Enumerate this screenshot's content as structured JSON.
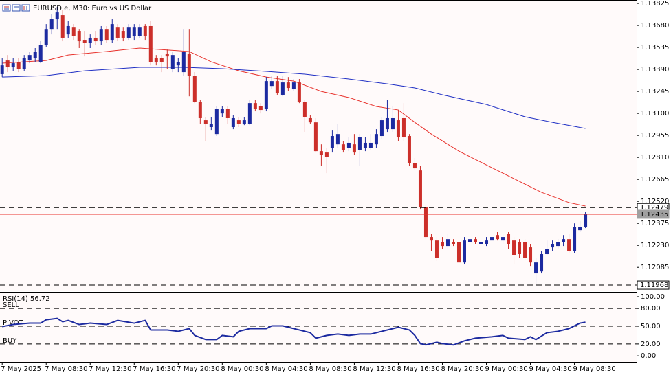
{
  "header": {
    "title": "EURUSD.e, M30:  Euro vs US Dollar"
  },
  "chart_data": [
    {
      "type": "candlestick",
      "up_color": "#1c2aa0",
      "down_color": "#cc2f2a",
      "xlim": [
        -0.4,
        115.3
      ],
      "ylim": [
        1.11932,
        1.13848
      ],
      "yticks": [
        1.13825,
        {
          "value": 1.1368,
          "label": "1.13680"
        },
        1.13535,
        {
          "value": 1.1339,
          "label": "1.13390"
        },
        1.13245,
        {
          "value": 1.131,
          "label": "1.13100"
        },
        1.12955,
        {
          "value": 1.1281,
          "label": "1.12810"
        },
        1.12665,
        {
          "value": 1.1252,
          "label": "1.12520"
        },
        1.12375,
        {
          "value": 1.1223,
          "label": "1.12230"
        },
        1.12085
      ],
      "open": [
        1.13359,
        1.13449,
        1.13404,
        1.1344,
        1.13395,
        1.13449,
        1.13463,
        1.1344,
        1.13553,
        1.13657,
        1.13721,
        1.13748,
        1.13621,
        1.13666,
        1.13644,
        1.13585,
        1.13567,
        1.13599,
        1.13576,
        1.13657,
        1.13585,
        1.13666,
        1.13644,
        1.13599,
        1.13612,
        1.13612,
        1.13676,
        1.13676,
        1.13463,
        1.13463,
        1.13494,
        1.13395,
        1.13417,
        1.13372,
        1.13494,
        1.13349,
        1.13177,
        1.13055,
        1.1301,
        1.12964,
        1.131,
        1.13132,
        1.1301,
        1.13055,
        1.13032,
        1.13032,
        1.13168,
        1.13146,
        1.13132,
        1.13281,
        1.13313,
        1.13223,
        1.13304,
        1.13259,
        1.13304,
        1.13177,
        1.13069,
        1.13041,
        1.12851,
        1.12842,
        1.12874,
        1.12896,
        1.12896,
        1.12874,
        1.12896,
        1.1286,
        1.12874,
        1.12874,
        1.12896,
        1.12951,
        1.12996,
        1.12996,
        1.13055,
        1.13069,
        1.12951,
        1.1277,
        1.12724,
        1.1248,
        1.12285,
        1.12262,
        1.12253,
        1.12226,
        1.12253,
        1.12253,
        1.12117,
        1.12253,
        1.12271,
        1.1224,
        1.1224,
        1.12262,
        1.12298,
        1.12262,
        1.12307,
        1.12262,
        1.12253,
        1.12253,
        1.12217,
        1.12045,
        1.12058,
        1.12172,
        1.12217,
        1.12226,
        1.12253,
        1.12271,
        1.12194,
        1.1233,
        1.12353
      ],
      "high": [
        1.13463,
        1.13485,
        1.13463,
        1.13463,
        1.13485,
        1.13508,
        1.13531,
        1.13576,
        1.13689,
        1.13757,
        1.13803,
        1.1378,
        1.13712,
        1.13689,
        1.13657,
        1.13644,
        1.13621,
        1.13644,
        1.13676,
        1.13676,
        1.13721,
        1.13689,
        1.13666,
        1.13689,
        1.13689,
        1.13689,
        1.13689,
        1.13712,
        1.13485,
        1.13485,
        1.13521,
        1.13508,
        1.13463,
        1.13657,
        1.13657,
        1.13372,
        1.13191,
        1.13078,
        1.13078,
        1.13146,
        1.13146,
        1.13146,
        1.13087,
        1.13078,
        1.13078,
        1.13191,
        1.13191,
        1.13168,
        1.1334,
        1.13349,
        1.13349,
        1.13349,
        1.1334,
        1.13327,
        1.13327,
        1.13191,
        1.13087,
        1.13069,
        1.12896,
        1.12874,
        1.12987,
        1.13032,
        1.12919,
        1.12942,
        1.12964,
        1.12964,
        1.12942,
        1.12964,
        1.12996,
        1.13078,
        1.13191,
        1.13146,
        1.13123,
        1.13168,
        1.12964,
        1.12806,
        1.12752,
        1.12498,
        1.12307,
        1.12285,
        1.12285,
        1.12307,
        1.12271,
        1.12271,
        1.12285,
        1.12298,
        1.12285,
        1.12262,
        1.12285,
        1.12307,
        1.12317,
        1.12307,
        1.12317,
        1.12285,
        1.12271,
        1.12271,
        1.1224,
        1.12149,
        1.12194,
        1.12262,
        1.12262,
        1.12271,
        1.12298,
        1.12307,
        1.12375,
        1.12389,
        1.12452
      ],
      "low": [
        1.1334,
        1.13372,
        1.13377,
        1.13372,
        1.13377,
        1.13431,
        1.1344,
        1.13431,
        1.1354,
        1.13621,
        1.13657,
        1.13576,
        1.13599,
        1.13585,
        1.13531,
        1.13476,
        1.13531,
        1.13553,
        1.13549,
        1.13567,
        1.13567,
        1.13576,
        1.13576,
        1.13585,
        1.13585,
        1.13599,
        1.13585,
        1.13417,
        1.13417,
        1.13372,
        1.13395,
        1.13372,
        1.13372,
        1.13349,
        1.13213,
        1.13168,
        1.13032,
        1.12919,
        1.12987,
        1.12951,
        1.13078,
        1.13032,
        1.12996,
        1.1301,
        1.13023,
        1.13023,
        1.13114,
        1.131,
        1.13114,
        1.13259,
        1.13223,
        1.13213,
        1.1325,
        1.1325,
        1.13168,
        1.12978,
        1.13032,
        1.12842,
        1.12752,
        1.12706,
        1.12842,
        1.12874,
        1.12842,
        1.12851,
        1.12828,
        1.12752,
        1.12851,
        1.1286,
        1.12874,
        1.12933,
        1.12978,
        1.12978,
        1.12919,
        1.12919,
        1.12752,
        1.12724,
        1.12466,
        1.12271,
        1.12194,
        1.12126,
        1.12208,
        1.12208,
        1.12226,
        1.12104,
        1.12104,
        1.1224,
        1.1224,
        1.12217,
        1.12226,
        1.12253,
        1.12262,
        1.1224,
        1.12208,
        1.12104,
        1.12149,
        1.12135,
        1.1209,
        1.11968,
        1.12045,
        1.12163,
        1.12194,
        1.12208,
        1.12226,
        1.12181,
        1.12181,
        1.12317,
        1.12344
      ],
      "close": [
        1.13417,
        1.13404,
        1.13431,
        1.13395,
        1.13463,
        1.13485,
        1.13508,
        1.13553,
        1.13657,
        1.13721,
        1.13766,
        1.13599,
        1.13676,
        1.13612,
        1.13576,
        1.13567,
        1.13599,
        1.13576,
        1.13657,
        1.13585,
        1.13689,
        1.13599,
        1.13599,
        1.13666,
        1.13666,
        1.13666,
        1.13612,
        1.1344,
        1.1344,
        1.1344,
        1.13476,
        1.13485,
        1.1344,
        1.13508,
        1.13349,
        1.13177,
        1.13069,
        1.13032,
        1.13032,
        1.13132,
        1.13132,
        1.13069,
        1.13069,
        1.13032,
        1.13055,
        1.13168,
        1.13132,
        1.13123,
        1.13313,
        1.13313,
        1.13236,
        1.13304,
        1.13268,
        1.13304,
        1.13177,
        1.13078,
        1.13041,
        1.12851,
        1.12828,
        1.12815,
        1.12951,
        1.12964,
        1.1286,
        1.12906,
        1.12842,
        1.12942,
        1.12906,
        1.12906,
        1.12964,
        1.13055,
        1.13069,
        1.13069,
        1.12942,
        1.12942,
        1.1277,
        1.12738,
        1.1248,
        1.12285,
        1.12262,
        1.12149,
        1.12226,
        1.12271,
        1.1224,
        1.12117,
        1.12262,
        1.12271,
        1.12253,
        1.12253,
        1.12262,
        1.12285,
        1.12271,
        1.12285,
        1.1224,
        1.12163,
        1.12172,
        1.12149,
        1.12117,
        1.12117,
        1.12172,
        1.12208,
        1.1224,
        1.12253,
        1.12271,
        1.12194,
        1.12353,
        1.12353,
        1.12435
      ],
      "overlays": [
        {
          "color": "#e8322c",
          "x": [
            0,
            8,
            12,
            19,
            25,
            29,
            34,
            38,
            43,
            48,
            53,
            58,
            63,
            68,
            72,
            75,
            78,
            83,
            88,
            93,
            98,
            103,
            106
          ],
          "values": [
            1.13431,
            1.13449,
            1.13485,
            1.13508,
            1.13531,
            1.13521,
            1.13508,
            1.1344,
            1.13381,
            1.1334,
            1.13313,
            1.13245,
            1.13205,
            1.13146,
            1.13123,
            1.13041,
            1.12964,
            1.12851,
            1.1276,
            1.1267,
            1.1258,
            1.12512,
            1.12489
          ]
        },
        {
          "color": "#1f2fc4",
          "x": [
            0,
            8,
            15,
            25,
            33,
            40,
            48,
            55,
            63,
            70,
            75,
            80,
            88,
            95,
            100,
            106
          ],
          "values": [
            1.1334,
            1.13349,
            1.13381,
            1.13404,
            1.13404,
            1.13395,
            1.13377,
            1.13359,
            1.13327,
            1.13295,
            1.13268,
            1.13223,
            1.13159,
            1.13078,
            1.13041,
            1.13001
          ]
        }
      ],
      "levels": [
        {
          "value": 1.12479,
          "style": "dashed",
          "color": "#000000"
        },
        {
          "value": 1.12435,
          "style": "solid",
          "color": "#e8322c"
        },
        {
          "value": 1.11968,
          "style": "dashed",
          "color": "#000000"
        }
      ]
    },
    {
      "type": "line",
      "xlim": [
        -0.4,
        115.3
      ],
      "ylim": [
        -10.3,
        106.9
      ],
      "yticks": [
        {
          "value": 100,
          "label": "100.00"
        },
        {
          "value": 80,
          "label": "80.00"
        },
        {
          "value": 50,
          "label": "50.00"
        },
        {
          "value": 20,
          "label": "20.00"
        },
        {
          "value": 0,
          "label": "0.00"
        }
      ],
      "levels": [
        {
          "value": 80,
          "label": "SELL"
        },
        {
          "value": 50,
          "label": "PIVOT"
        },
        {
          "value": 20,
          "label": "BUY"
        }
      ],
      "series": [
        {
          "name": "RSI(14)",
          "color": "#1c2aa0",
          "x": [
            0,
            2,
            5,
            7,
            8,
            10,
            11,
            12,
            14,
            16,
            19,
            21,
            24,
            26,
            27,
            30,
            32,
            34,
            35,
            37,
            39,
            40,
            42,
            43,
            45,
            48,
            49,
            51,
            52,
            54,
            56,
            57,
            59,
            61,
            63,
            65,
            67,
            69,
            71,
            72,
            74,
            75,
            76,
            77,
            79,
            80,
            82,
            84,
            86,
            89,
            91,
            92,
            95,
            96,
            97,
            99,
            101,
            103,
            105,
            106
          ],
          "values": [
            49.4,
            52.9,
            55.2,
            55.2,
            60.9,
            63.2,
            57.5,
            59.8,
            52.9,
            55.2,
            52.9,
            59.8,
            55.2,
            59.8,
            43.7,
            43.7,
            41.4,
            46.0,
            34.5,
            27.6,
            27.6,
            34.5,
            32.2,
            41.4,
            46.0,
            46.0,
            50.6,
            50.6,
            48.3,
            43.7,
            39.1,
            29.9,
            34.5,
            36.8,
            34.5,
            36.8,
            36.8,
            41.4,
            46.0,
            48.3,
            43.7,
            34.5,
            20.7,
            18.4,
            23.0,
            20.7,
            18.4,
            25.3,
            29.9,
            32.2,
            34.5,
            29.9,
            27.6,
            32.2,
            27.6,
            39.1,
            41.4,
            46.0,
            55.2,
            56.72
          ]
        }
      ],
      "xticks": [
        {
          "value": 0,
          "label": "7 May 2025"
        },
        {
          "value": 8,
          "label": "7 May 08:30"
        },
        {
          "value": 16,
          "label": "7 May 12:30"
        },
        {
          "value": 24,
          "label": "7 May 16:30"
        },
        {
          "value": 32,
          "label": "7 May 20:30"
        },
        {
          "value": 40,
          "label": "8 May 00:30"
        },
        {
          "value": 48,
          "label": "8 May 04:30"
        },
        {
          "value": 56,
          "label": "8 May 08:30"
        },
        {
          "value": 64,
          "label": "8 May 12:30"
        },
        {
          "value": 72,
          "label": "8 May 16:30"
        },
        {
          "value": 80,
          "label": "8 May 20:30"
        },
        {
          "value": 88,
          "label": "9 May 00:30"
        },
        {
          "value": 96,
          "label": "9 May 04:30"
        },
        {
          "value": 104,
          "label": "9 May 08:30"
        }
      ]
    }
  ]
}
